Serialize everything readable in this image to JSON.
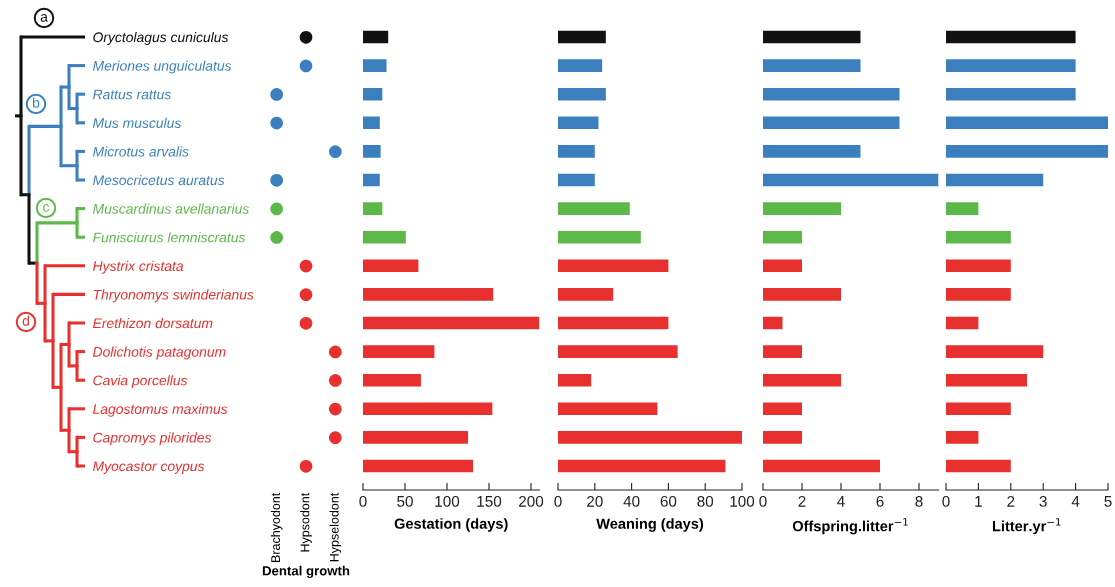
{
  "chart_data": [
    {
      "type": "heatmap",
      "categories": [
        "Brachyodont",
        "Hypsodont",
        "Hypselodont"
      ],
      "xlabel": "Dental growth",
      "y_categories": [
        "Oryctolagus cuniculus",
        "Meriones unguiculatus",
        "Rattus rattus",
        "Mus musculus",
        "Microtus arvalis",
        "Mesocricetus auratus",
        "Muscardinus avellanarius",
        "Funisciurus lemniscratus",
        "Hystrix cristata",
        "Thryonomys swinderianus",
        "Erethizon dorsatum",
        "Dolichotis patagonum",
        "Cavia porcellus",
        "Lagostomus maximus",
        "Capromys pilorides",
        "Myocastor coypus"
      ],
      "cells": [
        [
          null,
          null,
          null
        ],
        [
          null,
          null,
          null
        ],
        [
          null,
          null,
          null
        ],
        [
          null,
          null,
          null
        ],
        [
          null,
          null,
          null
        ],
        [
          null,
          null,
          null
        ],
        [
          null,
          null,
          null
        ],
        [
          null,
          null,
          null
        ],
        [
          null,
          null,
          null
        ],
        [
          null,
          null,
          null
        ],
        [
          null,
          null,
          null
        ],
        [
          null,
          null,
          null
        ],
        [
          null,
          null,
          null
        ],
        [
          null,
          null,
          null
        ],
        [
          null,
          null,
          null
        ],
        [
          null,
          null,
          null
        ]
      ],
      "cell_labels": [
        [
          null,
          "●",
          null
        ],
        [
          null,
          "●",
          null
        ],
        [
          "●",
          null,
          null
        ],
        [
          "●",
          null,
          null
        ],
        [
          null,
          null,
          "●"
        ],
        [
          "●",
          null,
          null
        ],
        [
          "●",
          null,
          null
        ],
        [
          "●",
          null,
          null
        ],
        [
          null,
          "●",
          null
        ],
        [
          null,
          "●",
          null
        ],
        [
          null,
          "●",
          null
        ],
        [
          null,
          null,
          "●"
        ],
        [
          null,
          null,
          "●"
        ],
        [
          null,
          null,
          "●"
        ],
        [
          null,
          null,
          "●"
        ],
        [
          null,
          "●",
          null
        ]
      ],
      "colors": [
        "#111111",
        "#3b7fbf",
        "#3b7fbf",
        "#3b7fbf",
        "#3b7fbf",
        "#3b7fbf",
        "#5cb848",
        "#5cb848",
        "#e8302e",
        "#e8302e",
        "#e8302e",
        "#e8302e",
        "#e8302e",
        "#e8302e",
        "#e8302e",
        "#e8302e"
      ],
      "annotations": [
        "a",
        "b",
        "c",
        "d"
      ]
    },
    {
      "type": "bar",
      "orientation": "horizontal",
      "xlabel": "Gestation (days)",
      "categories": [
        null,
        null,
        null,
        null,
        null,
        null,
        null,
        null,
        null,
        null,
        null,
        null,
        null,
        null,
        null,
        null
      ],
      "values": [
        30,
        28,
        23,
        20,
        21,
        20,
        23,
        51,
        66,
        155,
        210,
        85,
        69,
        154,
        125,
        131
      ],
      "colors": [
        "#111111",
        "#3b7fbf",
        "#3b7fbf",
        "#3b7fbf",
        "#3b7fbf",
        "#3b7fbf",
        "#5cb848",
        "#5cb848",
        "#e8302e",
        "#e8302e",
        "#e8302e",
        "#e8302e",
        "#e8302e",
        "#e8302e",
        "#e8302e",
        "#e8302e"
      ],
      "xlim": [
        0,
        210
      ],
      "xticks": [
        0,
        50,
        100,
        150,
        200
      ]
    },
    {
      "type": "bar",
      "orientation": "horizontal",
      "xlabel": "Weaning (days)",
      "categories": [
        null,
        null,
        null,
        null,
        null,
        null,
        null,
        null,
        null,
        null,
        null,
        null,
        null,
        null,
        null,
        null
      ],
      "values": [
        26,
        24,
        26,
        22,
        20,
        20,
        39,
        45,
        60,
        30,
        60,
        65,
        18,
        54,
        100,
        91
      ],
      "colors": [
        "#111111",
        "#3b7fbf",
        "#3b7fbf",
        "#3b7fbf",
        "#3b7fbf",
        "#3b7fbf",
        "#5cb848",
        "#5cb848",
        "#e8302e",
        "#e8302e",
        "#e8302e",
        "#e8302e",
        "#e8302e",
        "#e8302e",
        "#e8302e",
        "#e8302e"
      ],
      "xlim": [
        0,
        100
      ],
      "xticks": [
        0,
        20,
        40,
        60,
        80,
        100
      ]
    },
    {
      "type": "bar",
      "orientation": "horizontal",
      "xlabel": "Offspring.litter$^{−1}$",
      "categories": [
        null,
        null,
        null,
        null,
        null,
        null,
        null,
        null,
        null,
        null,
        null,
        null,
        null,
        null,
        null,
        null
      ],
      "values": [
        5,
        5,
        7,
        7,
        5,
        9,
        4,
        2,
        2,
        4,
        1,
        2,
        4,
        2,
        2,
        6
      ],
      "colors": [
        "#111111",
        "#3b7fbf",
        "#3b7fbf",
        "#3b7fbf",
        "#3b7fbf",
        "#3b7fbf",
        "#5cb848",
        "#5cb848",
        "#e8302e",
        "#e8302e",
        "#e8302e",
        "#e8302e",
        "#e8302e",
        "#e8302e",
        "#e8302e",
        "#e8302e"
      ],
      "xlim": [
        0,
        9
      ],
      "xticks": [
        0,
        2,
        4,
        6,
        8
      ]
    },
    {
      "type": "bar",
      "orientation": "horizontal",
      "xlabel": "Litter.yr$^{−1}$",
      "categories": [
        null,
        null,
        null,
        null,
        null,
        null,
        null,
        null,
        null,
        null,
        null,
        null,
        null,
        null,
        null,
        null
      ],
      "values": [
        4,
        4,
        4,
        5,
        5,
        3,
        1,
        2,
        2,
        2,
        1,
        3,
        2.5,
        2,
        1,
        2
      ],
      "colors": [
        "#111111",
        "#3b7fbf",
        "#3b7fbf",
        "#3b7fbf",
        "#3b7fbf",
        "#3b7fbf",
        "#5cb848",
        "#5cb848",
        "#e8302e",
        "#e8302e",
        "#e8302e",
        "#e8302e",
        "#e8302e",
        "#e8302e",
        "#e8302e",
        "#e8302e"
      ],
      "xlim": [
        0,
        5
      ],
      "xticks": [
        0,
        1,
        2,
        3,
        4,
        5
      ]
    }
  ]
}
